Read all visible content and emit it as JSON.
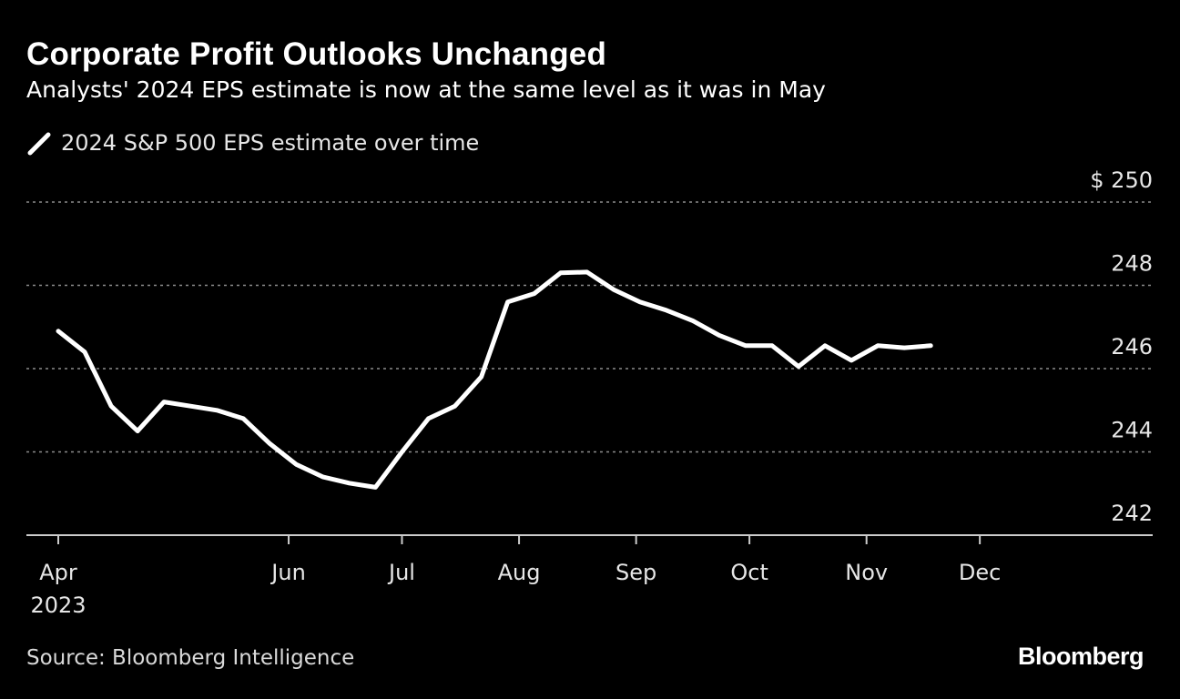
{
  "title": "Corporate Profit Outlooks Unchanged",
  "subtitle": "Analysts' 2024 EPS estimate is now at the same level as it was in May",
  "source": "Source: Bloomberg Intelligence",
  "brand": "Bloomberg",
  "colors": {
    "background": "#000000",
    "line": "#ffffff",
    "grid": "#8c8c8c",
    "text": "#e6e6e6"
  },
  "chart_data": {
    "type": "line",
    "title": "Corporate Profit Outlooks Unchanged",
    "legend": "2024 S&P 500 EPS estimate over time",
    "legend_position": "top-left",
    "xlabel": "",
    "ylabel": "",
    "ylim": [
      242,
      250
    ],
    "y_ticks": [
      {
        "value": 250,
        "label": "$ 250"
      },
      {
        "value": 248,
        "label": "248"
      },
      {
        "value": 246,
        "label": "246"
      },
      {
        "value": 244,
        "label": "244"
      },
      {
        "value": 242,
        "label": "242"
      }
    ],
    "x_range_days": [
      0,
      270
    ],
    "x_ticks": [
      {
        "day": 0,
        "label": "Apr",
        "sublabel": "2023"
      },
      {
        "day": 61,
        "label": "Jun"
      },
      {
        "day": 91,
        "label": "Jul"
      },
      {
        "day": 122,
        "label": "Aug"
      },
      {
        "day": 153,
        "label": "Sep"
      },
      {
        "day": 183,
        "label": "Oct"
      },
      {
        "day": 214,
        "label": "Nov"
      },
      {
        "day": 244,
        "label": "Dec"
      }
    ],
    "grid": true,
    "series": [
      {
        "name": "2024 S&P 500 EPS estimate over time",
        "points": [
          {
            "day": 0,
            "value": 246.9
          },
          {
            "day": 7,
            "value": 246.4
          },
          {
            "day": 14,
            "value": 245.1
          },
          {
            "day": 21,
            "value": 244.5
          },
          {
            "day": 28,
            "value": 245.2
          },
          {
            "day": 35,
            "value": 245.1
          },
          {
            "day": 42,
            "value": 245.0
          },
          {
            "day": 49,
            "value": 244.8
          },
          {
            "day": 56,
            "value": 244.2
          },
          {
            "day": 63,
            "value": 243.7
          },
          {
            "day": 70,
            "value": 243.4
          },
          {
            "day": 77,
            "value": 243.25
          },
          {
            "day": 84,
            "value": 243.15
          },
          {
            "day": 91,
            "value": 244.0
          },
          {
            "day": 98,
            "value": 244.8
          },
          {
            "day": 105,
            "value": 245.1
          },
          {
            "day": 112,
            "value": 245.8
          },
          {
            "day": 119,
            "value": 247.6
          },
          {
            "day": 126,
            "value": 247.8
          },
          {
            "day": 133,
            "value": 248.3
          },
          {
            "day": 140,
            "value": 248.32
          },
          {
            "day": 147,
            "value": 247.9
          },
          {
            "day": 154,
            "value": 247.6
          },
          {
            "day": 161,
            "value": 247.4
          },
          {
            "day": 168,
            "value": 247.15
          },
          {
            "day": 175,
            "value": 246.8
          },
          {
            "day": 182,
            "value": 246.55
          },
          {
            "day": 189,
            "value": 246.55
          },
          {
            "day": 196,
            "value": 246.05
          },
          {
            "day": 203,
            "value": 246.55
          },
          {
            "day": 210,
            "value": 246.2
          },
          {
            "day": 217,
            "value": 246.55
          },
          {
            "day": 224,
            "value": 246.5
          },
          {
            "day": 231,
            "value": 246.55
          }
        ]
      }
    ]
  }
}
